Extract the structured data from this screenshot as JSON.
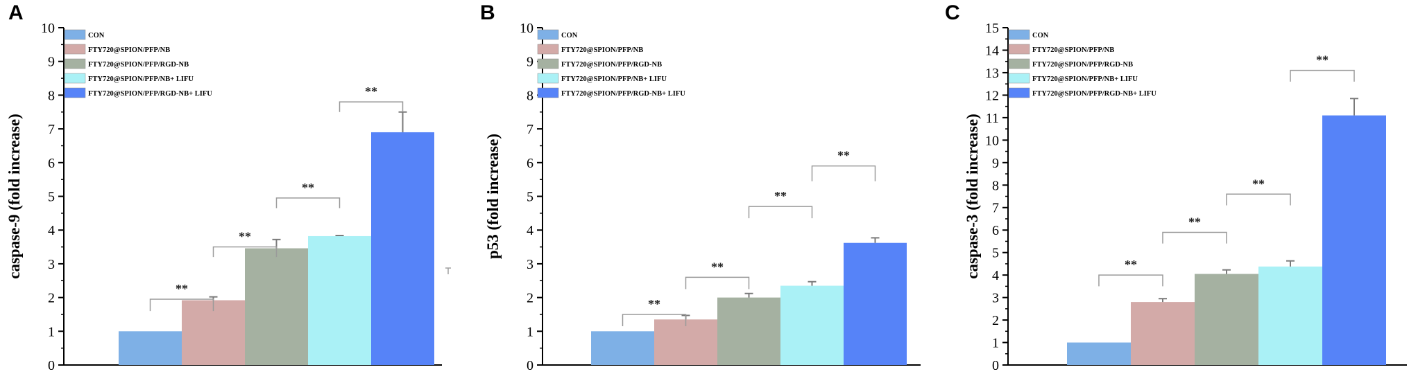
{
  "legend_labels": [
    "CON",
    "FTY720@SPION/PFP/NB",
    "FTY720@SPION/PFP/RGD-NB",
    "FTY720@SPION/PFP/NB+ LIFU",
    "FTY720@SPION/PFP/RGD-NB+ LIFU"
  ],
  "colors": [
    "#7eb0e6",
    "#d3aaa8",
    "#a5b1a1",
    "#aaf1f6",
    "#5683f8"
  ],
  "significance_mark": "**",
  "chart_data": [
    {
      "panel": "A",
      "type": "bar",
      "ylabel": "caspase-9 (fold increase)",
      "ylim": [
        0,
        10
      ],
      "yticks": [
        0,
        1,
        2,
        3,
        4,
        5,
        6,
        7,
        8,
        9,
        10
      ],
      "legend_position": "top-left",
      "categories": [
        "CON",
        "FTY720@SPION/PFP/NB",
        "FTY720@SPION/PFP/RGD-NB",
        "FTY720@SPION/PFP/NB+ LIFU",
        "FTY720@SPION/PFP/RGD-NB+ LIFU"
      ],
      "values": [
        1.0,
        1.92,
        3.46,
        3.82,
        6.9
      ],
      "errors": [
        0.0,
        0.1,
        0.26,
        0.02,
        0.6
      ],
      "comparisons": [
        {
          "from": 0,
          "to": 1,
          "label": "**"
        },
        {
          "from": 1,
          "to": 2,
          "label": "**"
        },
        {
          "from": 2,
          "to": 3,
          "label": "**"
        },
        {
          "from": 3,
          "to": 4,
          "label": "**"
        }
      ]
    },
    {
      "panel": "B",
      "type": "bar",
      "ylabel": "p53 (fold increase)",
      "ylim": [
        0,
        10
      ],
      "yticks": [
        0,
        1,
        2,
        3,
        4,
        5,
        6,
        7,
        8,
        9,
        10
      ],
      "legend_position": "top-left",
      "categories": [
        "CON",
        "FTY720@SPION/PFP/NB",
        "FTY720@SPION/PFP/RGD-NB",
        "FTY720@SPION/PFP/NB+ LIFU",
        "FTY720@SPION/PFP/RGD-NB+ LIFU"
      ],
      "values": [
        1.0,
        1.35,
        2.0,
        2.35,
        3.62
      ],
      "errors": [
        0.0,
        0.12,
        0.12,
        0.12,
        0.15
      ],
      "comparisons": [
        {
          "from": 0,
          "to": 1,
          "label": "**"
        },
        {
          "from": 1,
          "to": 2,
          "label": "**"
        },
        {
          "from": 2,
          "to": 3,
          "label": "**"
        },
        {
          "from": 3,
          "to": 4,
          "label": "**"
        }
      ]
    },
    {
      "panel": "C",
      "type": "bar",
      "ylabel": "caspase-3 (fold increase)",
      "ylim": [
        0,
        15
      ],
      "yticks": [
        0,
        1,
        2,
        3,
        4,
        5,
        6,
        7,
        8,
        9,
        10,
        11,
        12,
        13,
        14,
        15
      ],
      "legend_position": "top-left",
      "categories": [
        "CON",
        "FTY720@SPION/PFP/NB",
        "FTY720@SPION/PFP/RGD-NB",
        "FTY720@SPION/PFP/NB+ LIFU",
        "FTY720@SPION/PFP/RGD-NB+ LIFU"
      ],
      "values": [
        1.0,
        2.8,
        4.05,
        4.38,
        11.1
      ],
      "errors": [
        0.0,
        0.15,
        0.18,
        0.25,
        0.75
      ],
      "comparisons": [
        {
          "from": 0,
          "to": 1,
          "label": "**"
        },
        {
          "from": 1,
          "to": 2,
          "label": "**"
        },
        {
          "from": 2,
          "to": 3,
          "label": "**"
        },
        {
          "from": 3,
          "to": 4,
          "label": "**"
        }
      ]
    }
  ]
}
